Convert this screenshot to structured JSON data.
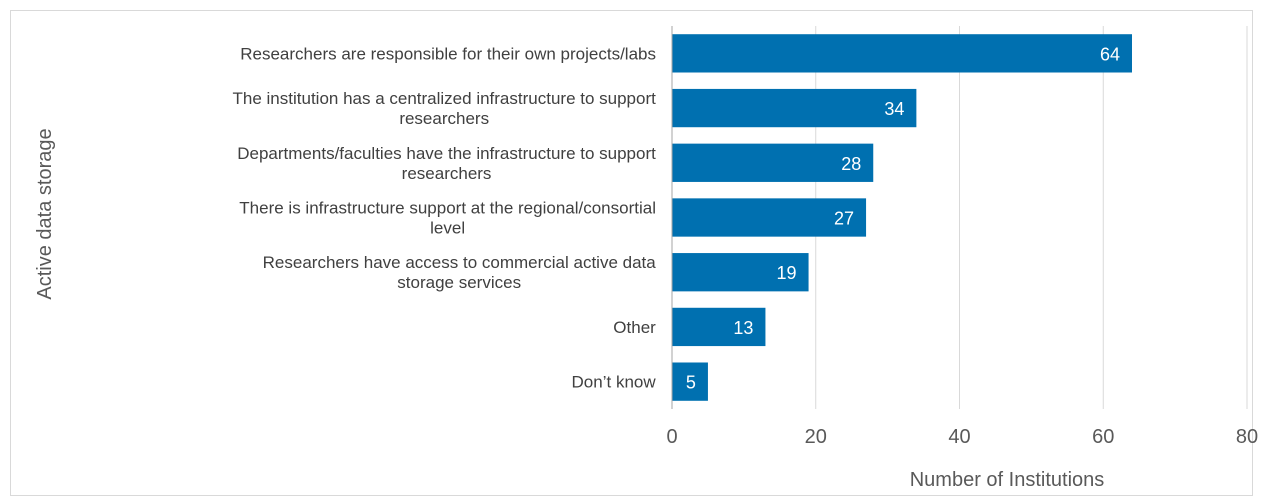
{
  "chart_data": {
    "type": "bar",
    "orientation": "horizontal",
    "title": "",
    "xlabel": "Number of Institutions",
    "ylabel": "Active data storage",
    "categories": [
      [
        "Researchers are responsible for their own projects/labs"
      ],
      [
        "The institution has a centralized infrastructure to support",
        "researchers"
      ],
      [
        "Departments/faculties have the infrastructure to support",
        "researchers"
      ],
      [
        "There is infrastructure support at the regional/consortial",
        "level"
      ],
      [
        "Researchers have access to commercial active data",
        "storage services"
      ],
      [
        "Other"
      ],
      [
        "Don’t know"
      ]
    ],
    "values": [
      64,
      34,
      28,
      27,
      19,
      13,
      5
    ],
    "data_labels": [
      "64",
      "34",
      "28",
      "27",
      "19",
      "13",
      "5"
    ],
    "xlim": [
      0,
      80
    ],
    "x_ticks": [
      0,
      20,
      40,
      60,
      80
    ],
    "x_tick_labels": [
      "0",
      "20",
      "40",
      "60",
      "80"
    ],
    "grid": "vertical",
    "legend": "none",
    "colors": {
      "bar": "#0070b0",
      "grid": "#d9d9d9",
      "axis": "#a6a6a6",
      "text": "#404040",
      "tick_text": "#595959",
      "label_text": "#ffffff"
    }
  }
}
